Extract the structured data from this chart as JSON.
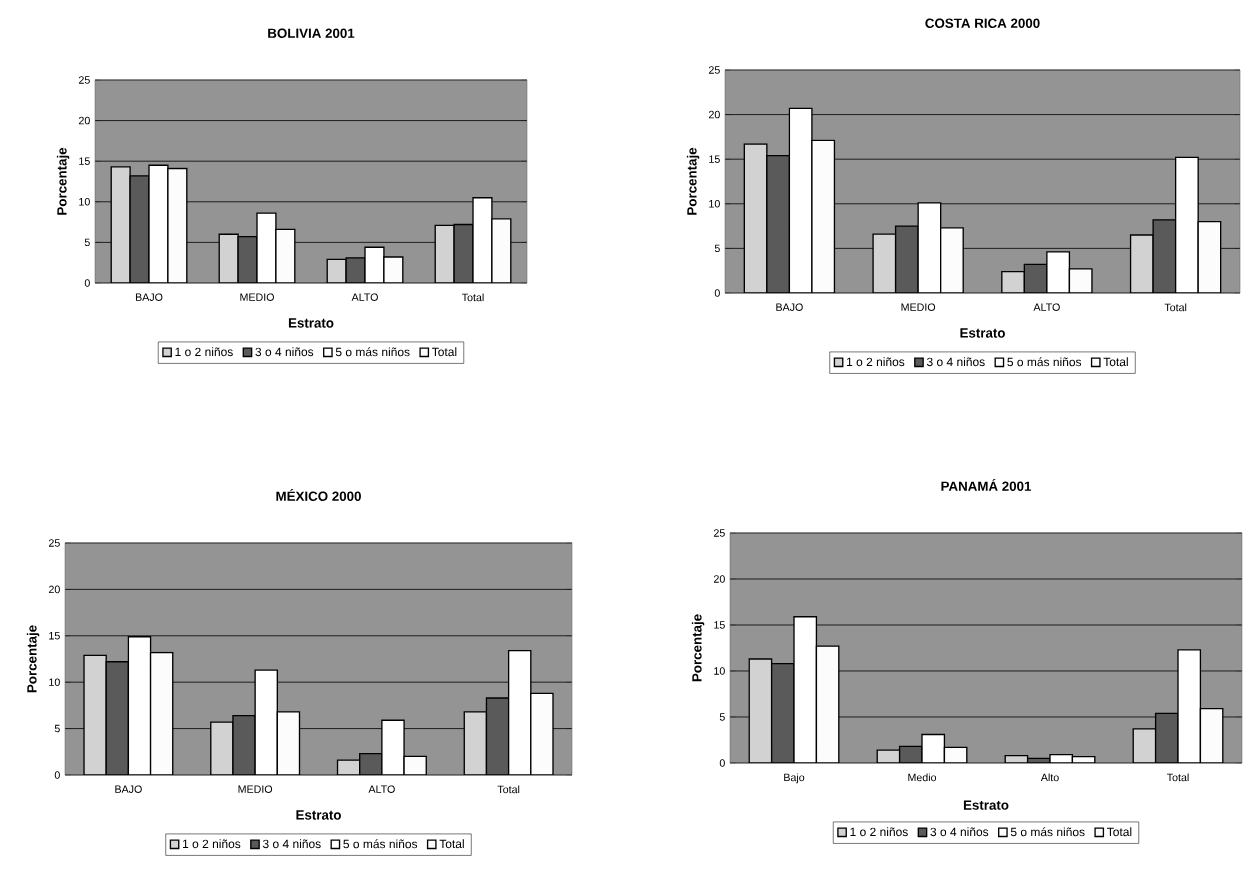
{
  "chart_data": [
    {
      "type": "bar",
      "title": "BOLIVIA 2001",
      "xlabel": "Estrato",
      "ylabel": "Porcentaje",
      "categories": [
        "BAJO",
        "MEDIO",
        "ALTO",
        "Total"
      ],
      "ylim": [
        0,
        25
      ],
      "yticks": [
        0,
        5,
        10,
        15,
        20,
        25
      ],
      "grid": "y",
      "legend": "bottom",
      "series": [
        {
          "name": "1 o 2 niños",
          "color": "#d2d2d2",
          "values": [
            14.3,
            6.0,
            2.9,
            7.1
          ]
        },
        {
          "name": "3 o 4 niños",
          "color": "#5a5a5a",
          "values": [
            13.2,
            5.7,
            3.1,
            7.2
          ]
        },
        {
          "name": "5 o más niños",
          "color": "#ffffff",
          "values": [
            14.5,
            8.6,
            4.4,
            10.5
          ]
        },
        {
          "name": "Total",
          "color": "#fcfcfc",
          "values": [
            14.1,
            6.6,
            3.2,
            7.9
          ]
        }
      ]
    },
    {
      "type": "bar",
      "title": "COSTA RICA 2000",
      "xlabel": "Estrato",
      "ylabel": "Porcentaje",
      "categories": [
        "BAJO",
        "MEDIO",
        "ALTO",
        "Total"
      ],
      "ylim": [
        0,
        25
      ],
      "yticks": [
        0,
        5,
        10,
        15,
        20,
        25
      ],
      "grid": "y",
      "legend": "bottom",
      "series": [
        {
          "name": "1 o 2 niños",
          "color": "#d2d2d2",
          "values": [
            16.7,
            6.6,
            2.4,
            6.5
          ]
        },
        {
          "name": "3 o 4 niños",
          "color": "#5a5a5a",
          "values": [
            15.4,
            7.5,
            3.2,
            8.2
          ]
        },
        {
          "name": "5 o más niños",
          "color": "#ffffff",
          "values": [
            20.7,
            10.1,
            4.6,
            15.2
          ]
        },
        {
          "name": "Total",
          "color": "#fcfcfc",
          "values": [
            17.1,
            7.3,
            2.7,
            8.0
          ]
        }
      ]
    },
    {
      "type": "bar",
      "title": "MÉXICO 2000",
      "xlabel": "Estrato",
      "ylabel": "Porcentaje",
      "categories": [
        "BAJO",
        "MEDIO",
        "ALTO",
        "Total"
      ],
      "ylim": [
        0,
        25
      ],
      "yticks": [
        0,
        5,
        10,
        15,
        20,
        25
      ],
      "grid": "y",
      "legend": "bottom",
      "series": [
        {
          "name": "1 o 2 niños",
          "color": "#d2d2d2",
          "values": [
            12.9,
            5.7,
            1.6,
            6.8
          ]
        },
        {
          "name": "3 o 4 niños",
          "color": "#5a5a5a",
          "values": [
            12.2,
            6.4,
            2.3,
            8.3
          ]
        },
        {
          "name": "5 o más niños",
          "color": "#ffffff",
          "values": [
            14.9,
            11.3,
            5.9,
            13.4
          ]
        },
        {
          "name": "Total",
          "color": "#fcfcfc",
          "values": [
            13.2,
            6.8,
            2.0,
            8.8
          ]
        }
      ]
    },
    {
      "type": "bar",
      "title": "PANAMÁ 2001",
      "xlabel": "Estrato",
      "ylabel": "Porcentaje",
      "categories": [
        "Bajo",
        "Medio",
        "Alto",
        "Total"
      ],
      "ylim": [
        0,
        25
      ],
      "yticks": [
        0,
        5,
        10,
        15,
        20,
        25
      ],
      "grid": "y",
      "legend": "bottom",
      "series": [
        {
          "name": "1 o 2 niños",
          "color": "#d2d2d2",
          "values": [
            11.3,
            1.4,
            0.8,
            3.7
          ]
        },
        {
          "name": "3 o 4 niños",
          "color": "#5a5a5a",
          "values": [
            10.8,
            1.8,
            0.5,
            5.4
          ]
        },
        {
          "name": "5 o más niños",
          "color": "#ffffff",
          "values": [
            15.9,
            3.1,
            0.9,
            12.3
          ]
        },
        {
          "name": "Total",
          "color": "#fcfcfc",
          "values": [
            12.7,
            1.7,
            0.7,
            5.9
          ]
        }
      ]
    }
  ]
}
